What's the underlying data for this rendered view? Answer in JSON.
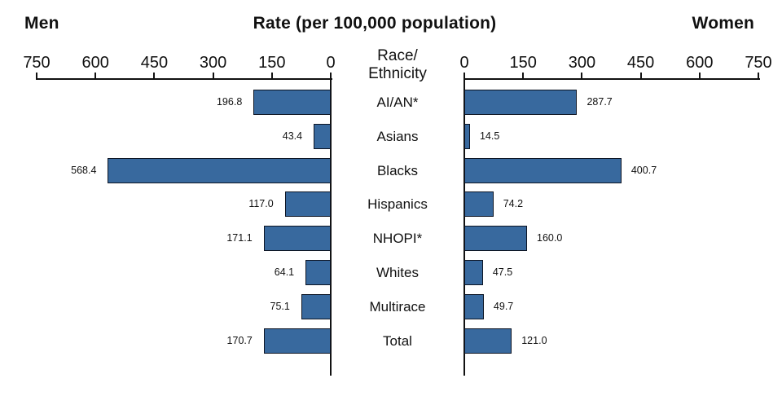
{
  "header": {
    "left_title": "Men",
    "center_title": "Rate (per 100,000 population)",
    "right_title": "Women"
  },
  "center_column": {
    "header": "Race/\nEthnicity"
  },
  "chart_data": {
    "type": "bar",
    "orientation": "horizontal-bidirectional",
    "title": "Rate (per 100,000 population)",
    "left_panel": "Men",
    "right_panel": "Women",
    "axis": {
      "men_ticks": [
        750,
        600,
        450,
        300,
        150,
        0
      ],
      "women_ticks": [
        0,
        150,
        300,
        450,
        600,
        750
      ],
      "max": 750,
      "grid": false
    },
    "categories": [
      "AI/AN*",
      "Asians",
      "Blacks",
      "Hispanics",
      "NHOPI*",
      "Whites",
      "Multirace",
      "Total"
    ],
    "series": [
      {
        "name": "Men",
        "values": [
          196.8,
          43.4,
          568.4,
          117.0,
          171.1,
          64.1,
          75.1,
          170.7
        ]
      },
      {
        "name": "Women",
        "values": [
          287.7,
          14.5,
          400.7,
          74.2,
          160.0,
          47.5,
          49.7,
          121.0
        ]
      }
    ],
    "value_labels": "one-decimal, outside bar ends",
    "bar_color": "#38699e",
    "bar_border_color": "#0d1524",
    "axis_color": "#111111"
  }
}
